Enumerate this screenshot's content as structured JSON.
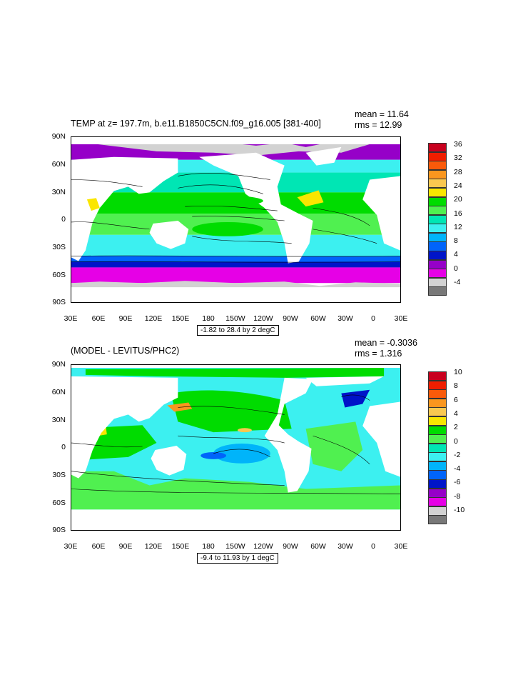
{
  "panels": [
    {
      "title": "TEMP at z= 197.7m, b.e11.B1850C5CN.f09_g16.005 [381-400]",
      "mean": "mean = 11.64",
      "rms": "rms = 12.99",
      "range": "-1.82 to 28.4 by 2 degC",
      "colorbar_labels": [
        "36",
        "32",
        "28",
        "24",
        "20",
        "16",
        "12",
        "8",
        "4",
        "0",
        "-4"
      ],
      "colorbar_colors": [
        "#c8001e",
        "#f01e00",
        "#fa5a0a",
        "#fa961e",
        "#fac850",
        "#fae600",
        "#00dc00",
        "#50f050",
        "#00e6b4",
        "#3cf0f0",
        "#00b4fa",
        "#0064fa",
        "#0014c8",
        "#9600c8",
        "#e600e6",
        "#d2d2d2",
        "#787878"
      ]
    },
    {
      "title": "(MODEL - LEVITUS/PHC2)",
      "mean": "mean = -0.3036",
      "rms": "rms = 1.316",
      "range": "-9.4 to 11.93 by 1 degC",
      "colorbar_labels": [
        "10",
        "8",
        "6",
        "4",
        "2",
        "0",
        "-2",
        "-4",
        "-6",
        "-8",
        "-10"
      ],
      "colorbar_colors": [
        "#c8001e",
        "#f01e00",
        "#fa5a0a",
        "#fa961e",
        "#fac850",
        "#fae600",
        "#00dc00",
        "#50f050",
        "#00e6b4",
        "#3cf0f0",
        "#00b4fa",
        "#0064fa",
        "#0014c8",
        "#9600c8",
        "#e600e6",
        "#d2d2d2",
        "#787878"
      ]
    }
  ],
  "y_ticks": [
    "90N",
    "60N",
    "30N",
    "0",
    "30S",
    "60S",
    "90S"
  ],
  "x_ticks": [
    "30E",
    "60E",
    "90E",
    "120E",
    "150E",
    "180",
    "150W",
    "120W",
    "90W",
    "60W",
    "30W",
    "0",
    "30E"
  ]
}
